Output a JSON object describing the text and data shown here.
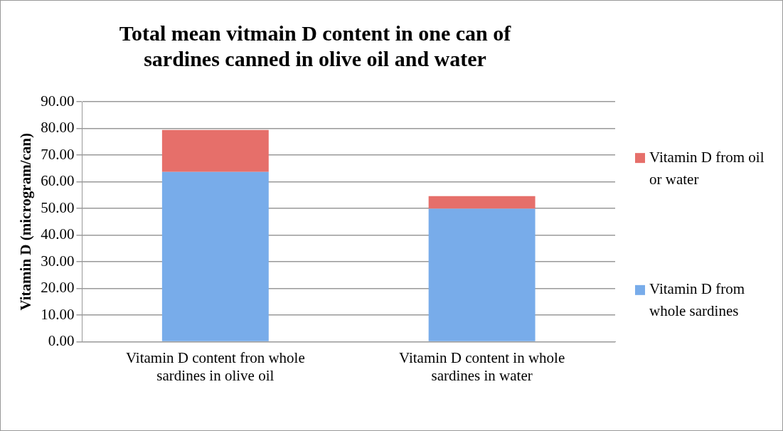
{
  "chart_data": {
    "type": "bar",
    "title": "Total mean vitmain D content in one can of sardines canned in olive oil and water",
    "ylabel": "Vitamin D (microgram/can)",
    "categories": [
      "Vitamin D content fron whole sardines in olive oil",
      "Vitamin D content in whole sardines in water"
    ],
    "stacked": true,
    "series": [
      {
        "name": "Vitamin D from whole sardines",
        "color": "#78acea",
        "values": [
          63.7,
          49.9
        ]
      },
      {
        "name": "Vitamin D from oil or water",
        "color": "#e66f6a",
        "values": [
          15.7,
          4.7
        ]
      }
    ],
    "ylim": [
      0,
      90
    ],
    "yticks": [
      {
        "value": 0,
        "label": "0.00"
      },
      {
        "value": 10,
        "label": "10.00"
      },
      {
        "value": 20,
        "label": "20.00"
      },
      {
        "value": 30,
        "label": "30.00"
      },
      {
        "value": 40,
        "label": "40.00"
      },
      {
        "value": 50,
        "label": "50.00"
      },
      {
        "value": 60,
        "label": "60.00"
      },
      {
        "value": 70,
        "label": "70.00"
      },
      {
        "value": 80,
        "label": "80.00"
      },
      {
        "value": 90,
        "label": "90.00"
      }
    ],
    "grid": "y",
    "legend": "right"
  }
}
